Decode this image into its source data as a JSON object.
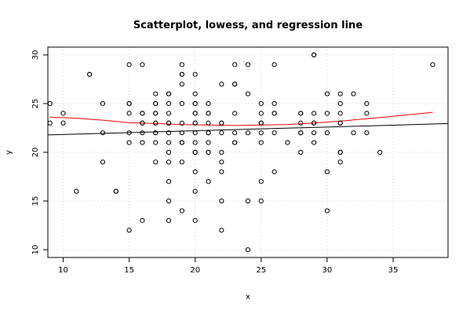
{
  "chart_data": {
    "type": "scatter",
    "title": "Scatterplot, lowess, and regression line",
    "xlabel": "x",
    "ylabel": "y",
    "xlim": [
      8.84,
      39.16
    ],
    "ylim": [
      9.2,
      30.8
    ],
    "xticks": [
      10,
      15,
      20,
      25,
      30,
      35
    ],
    "yticks": [
      10,
      15,
      20,
      25,
      30
    ],
    "grid": true,
    "colors": {
      "points": "#000000",
      "lowess": "#ff0000",
      "regression": "#000000",
      "grid": "#d9d9d9"
    },
    "points": [
      [
        9,
        25
      ],
      [
        9,
        23
      ],
      [
        10,
        24
      ],
      [
        10,
        23
      ],
      [
        11,
        16
      ],
      [
        12,
        28
      ],
      [
        12,
        28
      ],
      [
        13,
        25
      ],
      [
        13,
        22
      ],
      [
        13,
        19
      ],
      [
        14,
        16
      ],
      [
        14,
        16
      ],
      [
        15,
        29
      ],
      [
        15,
        25
      ],
      [
        15,
        25
      ],
      [
        15,
        24
      ],
      [
        15,
        22
      ],
      [
        15,
        21
      ],
      [
        15,
        12
      ],
      [
        16,
        29
      ],
      [
        16,
        24
      ],
      [
        16,
        24
      ],
      [
        16,
        23
      ],
      [
        16,
        23
      ],
      [
        16,
        22
      ],
      [
        16,
        21
      ],
      [
        16,
        13
      ],
      [
        17,
        26
      ],
      [
        17,
        25
      ],
      [
        17,
        25
      ],
      [
        17,
        24
      ],
      [
        17,
        24
      ],
      [
        17,
        23
      ],
      [
        17,
        23
      ],
      [
        17,
        22
      ],
      [
        17,
        22
      ],
      [
        17,
        21
      ],
      [
        17,
        19
      ],
      [
        18,
        26
      ],
      [
        18,
        26
      ],
      [
        18,
        25
      ],
      [
        18,
        24
      ],
      [
        18,
        23
      ],
      [
        18,
        23
      ],
      [
        18,
        22
      ],
      [
        18,
        21
      ],
      [
        18,
        20
      ],
      [
        18,
        19
      ],
      [
        18,
        17
      ],
      [
        18,
        15
      ],
      [
        18,
        13
      ],
      [
        19,
        29
      ],
      [
        19,
        28
      ],
      [
        19,
        28
      ],
      [
        19,
        27
      ],
      [
        19,
        25
      ],
      [
        19,
        23
      ],
      [
        19,
        22
      ],
      [
        19,
        21
      ],
      [
        19,
        21
      ],
      [
        19,
        19
      ],
      [
        19,
        14
      ],
      [
        20,
        28
      ],
      [
        20,
        26
      ],
      [
        20,
        25
      ],
      [
        20,
        25
      ],
      [
        20,
        24
      ],
      [
        20,
        24
      ],
      [
        20,
        23
      ],
      [
        20,
        23
      ],
      [
        20,
        22
      ],
      [
        20,
        21
      ],
      [
        20,
        20
      ],
      [
        20,
        20
      ],
      [
        20,
        18
      ],
      [
        20,
        16
      ],
      [
        20,
        13
      ],
      [
        21,
        25
      ],
      [
        21,
        24
      ],
      [
        21,
        24
      ],
      [
        21,
        23
      ],
      [
        21,
        22
      ],
      [
        21,
        22
      ],
      [
        21,
        21
      ],
      [
        21,
        20
      ],
      [
        21,
        20
      ],
      [
        21,
        17
      ],
      [
        22,
        27
      ],
      [
        22,
        23
      ],
      [
        22,
        23
      ],
      [
        22,
        22
      ],
      [
        22,
        20
      ],
      [
        22,
        19
      ],
      [
        22,
        18
      ],
      [
        22,
        15
      ],
      [
        22,
        12
      ],
      [
        23,
        29
      ],
      [
        23,
        27
      ],
      [
        23,
        27
      ],
      [
        23,
        24
      ],
      [
        23,
        22
      ],
      [
        23,
        21
      ],
      [
        23,
        21
      ],
      [
        24,
        29
      ],
      [
        24,
        26
      ],
      [
        24,
        22
      ],
      [
        24,
        15
      ],
      [
        24,
        10
      ],
      [
        25,
        25
      ],
      [
        25,
        24
      ],
      [
        25,
        23
      ],
      [
        25,
        23
      ],
      [
        25,
        22
      ],
      [
        25,
        21
      ],
      [
        25,
        17
      ],
      [
        25,
        15
      ],
      [
        26,
        29
      ],
      [
        26,
        25
      ],
      [
        26,
        24
      ],
      [
        26,
        24
      ],
      [
        26,
        22
      ],
      [
        26,
        18
      ],
      [
        27,
        21
      ],
      [
        28,
        24
      ],
      [
        28,
        24
      ],
      [
        28,
        23
      ],
      [
        28,
        22
      ],
      [
        28,
        22
      ],
      [
        28,
        20
      ],
      [
        29,
        30
      ],
      [
        29,
        30
      ],
      [
        29,
        24
      ],
      [
        29,
        23
      ],
      [
        29,
        23
      ],
      [
        29,
        22
      ],
      [
        29,
        21
      ],
      [
        30,
        26
      ],
      [
        30,
        24
      ],
      [
        30,
        22
      ],
      [
        30,
        18
      ],
      [
        30,
        14
      ],
      [
        31,
        26
      ],
      [
        31,
        25
      ],
      [
        31,
        24
      ],
      [
        31,
        23
      ],
      [
        31,
        23
      ],
      [
        31,
        20
      ],
      [
        31,
        20
      ],
      [
        31,
        19
      ],
      [
        32,
        26
      ],
      [
        32,
        22
      ],
      [
        33,
        25
      ],
      [
        33,
        24
      ],
      [
        33,
        22
      ],
      [
        34,
        20
      ],
      [
        38,
        29
      ]
    ],
    "lowess": [
      [
        9,
        23.6
      ],
      [
        11,
        23.5
      ],
      [
        13,
        23.3
      ],
      [
        15,
        23.05
      ],
      [
        17,
        22.95
      ],
      [
        19,
        22.85
      ],
      [
        21,
        22.8
      ],
      [
        23,
        22.75
      ],
      [
        25,
        22.8
      ],
      [
        27,
        22.85
      ],
      [
        29,
        23.0
      ],
      [
        31,
        23.2
      ],
      [
        33,
        23.45
      ],
      [
        35,
        23.7
      ],
      [
        38,
        24.1
      ]
    ],
    "regression": {
      "intercept": 21.44,
      "slope": 0.0385
    }
  }
}
